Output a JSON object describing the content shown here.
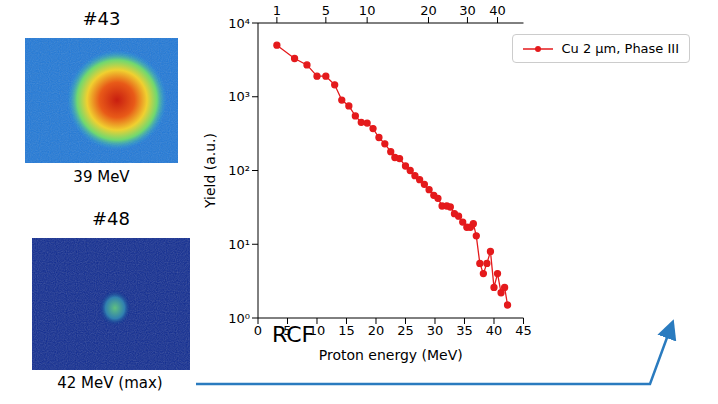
{
  "chart_data": {
    "type": "line",
    "x_label": "Proton energy (MeV)",
    "y_label": "Yield (a.u.)",
    "xlim": [
      0,
      45
    ],
    "xticks": [
      0,
      5,
      10,
      15,
      20,
      25,
      30,
      35,
      40,
      45
    ],
    "x2lim": [
      0,
      45
    ],
    "x2ticks": [
      {
        "value": 3.2,
        "label": "1"
      },
      {
        "value": 11.5,
        "label": "5"
      },
      {
        "value": 18.5,
        "label": "10"
      },
      {
        "value": 28.9,
        "label": "20"
      },
      {
        "value": 35.5,
        "label": "30"
      },
      {
        "value": 40.6,
        "label": "40"
      }
    ],
    "ylim": [
      1,
      10000
    ],
    "yticks": [
      {
        "value": 1,
        "label": "10⁰"
      },
      {
        "value": 10,
        "label": "10¹"
      },
      {
        "value": 100,
        "label": "10²"
      },
      {
        "value": 1000,
        "label": "10³"
      },
      {
        "value": 10000,
        "label": "10⁴"
      }
    ],
    "log": "y",
    "grid": false,
    "legend": "upper right",
    "annotations": [
      "RCF"
    ],
    "x": [
      3.2,
      6.2,
      8.3,
      10,
      11.5,
      13,
      14.2,
      15.4,
      16.5,
      17.5,
      18.5,
      19.5,
      20.5,
      21.5,
      22.5,
      23.2,
      24,
      25,
      25.8,
      26.6,
      27.4,
      28.2,
      29,
      29.8,
      30.5,
      31.2,
      32,
      32.6,
      33.3,
      34,
      34.7,
      35.4,
      36,
      36.5,
      37,
      37.6,
      38.2,
      38.8,
      39.4,
      40,
      40.6,
      41.2,
      41.8,
      42.3
    ],
    "series": [
      {
        "name": "Cu 2 μm, Phase III",
        "color": "#e41a1c",
        "marker": "circle",
        "values": [
          5000,
          3300,
          2700,
          1900,
          1900,
          1450,
          900,
          750,
          550,
          450,
          440,
          370,
          280,
          230,
          180,
          150,
          145,
          115,
          100,
          85,
          75,
          65,
          55,
          46,
          42,
          33,
          33,
          32,
          26,
          24,
          20,
          17,
          17,
          19,
          13,
          5.5,
          4,
          5.5,
          8,
          2.6,
          4,
          2.2,
          2.6,
          1.5
        ]
      }
    ]
  },
  "images": [
    {
      "label": "#43",
      "caption": "39 MeV"
    },
    {
      "label": "#48",
      "caption": "42 MeV (max)"
    }
  ]
}
